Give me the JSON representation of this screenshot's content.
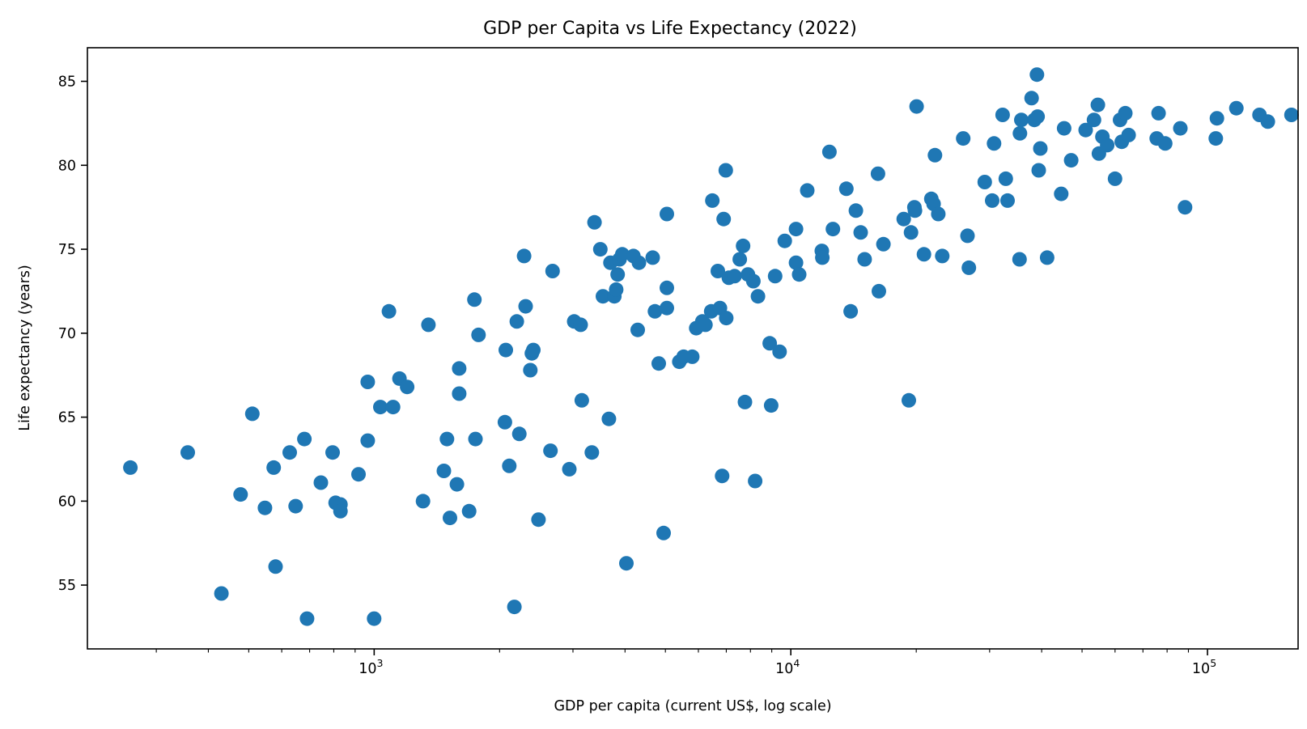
{
  "chart_data": {
    "type": "scatter",
    "title": "GDP per Capita vs Life Expectancy (2022)",
    "xlabel": "GDP per capita (current US$, log scale)",
    "ylabel": "Life expectancy (years)",
    "xscale": "log",
    "xlim": [
      205,
      165000
    ],
    "ylim": [
      51.2,
      87.0
    ],
    "grid": false,
    "legend": "none",
    "marker_color": "#1f77b4",
    "x_ticks": [
      {
        "base": "10",
        "exp": "3",
        "value": 1000
      },
      {
        "base": "10",
        "exp": "4",
        "value": 10000
      },
      {
        "base": "10",
        "exp": "5",
        "value": 100000
      }
    ],
    "y_ticks": [
      55,
      60,
      65,
      70,
      75,
      80,
      85
    ],
    "points": [
      [
        260,
        62.0
      ],
      [
        357,
        62.9
      ],
      [
        430,
        54.5
      ],
      [
        478,
        60.4
      ],
      [
        510,
        65.2
      ],
      [
        547,
        59.6
      ],
      [
        574,
        62.0
      ],
      [
        580,
        56.1
      ],
      [
        627,
        62.9
      ],
      [
        648,
        59.7
      ],
      [
        680,
        63.7
      ],
      [
        690,
        53.0
      ],
      [
        745,
        61.1
      ],
      [
        795,
        62.9
      ],
      [
        808,
        59.9
      ],
      [
        830,
        59.8
      ],
      [
        830,
        59.4
      ],
      [
        917,
        61.6
      ],
      [
        965,
        67.1
      ],
      [
        965,
        63.6
      ],
      [
        1000,
        53.0
      ],
      [
        1035,
        65.6
      ],
      [
        1085,
        71.3
      ],
      [
        1110,
        65.6
      ],
      [
        1150,
        67.3
      ],
      [
        1200,
        66.8
      ],
      [
        1310,
        60.0
      ],
      [
        1350,
        70.5
      ],
      [
        1470,
        61.8
      ],
      [
        1495,
        63.7
      ],
      [
        1520,
        59.0
      ],
      [
        1580,
        61.0
      ],
      [
        1600,
        67.9
      ],
      [
        1600,
        66.4
      ],
      [
        1690,
        59.4
      ],
      [
        1740,
        72.0
      ],
      [
        1750,
        63.7
      ],
      [
        1780,
        69.9
      ],
      [
        2060,
        64.7
      ],
      [
        2070,
        69.0
      ],
      [
        2110,
        62.1
      ],
      [
        2170,
        53.7
      ],
      [
        2200,
        70.7
      ],
      [
        2230,
        64.0
      ],
      [
        2290,
        74.6
      ],
      [
        2310,
        71.6
      ],
      [
        2370,
        67.8
      ],
      [
        2390,
        68.8
      ],
      [
        2410,
        69.0
      ],
      [
        2480,
        58.9
      ],
      [
        2650,
        63.0
      ],
      [
        2680,
        73.7
      ],
      [
        2940,
        61.9
      ],
      [
        3020,
        70.7
      ],
      [
        3130,
        70.5
      ],
      [
        3150,
        66.0
      ],
      [
        3330,
        62.9
      ],
      [
        3380,
        76.6
      ],
      [
        3490,
        75.0
      ],
      [
        3540,
        72.2
      ],
      [
        3660,
        64.9
      ],
      [
        3690,
        74.2
      ],
      [
        3770,
        72.2
      ],
      [
        3810,
        72.6
      ],
      [
        3840,
        73.5
      ],
      [
        3880,
        74.4
      ],
      [
        3940,
        74.7
      ],
      [
        4030,
        56.3
      ],
      [
        4190,
        74.6
      ],
      [
        4290,
        70.2
      ],
      [
        4320,
        74.2
      ],
      [
        4660,
        74.5
      ],
      [
        4720,
        71.3
      ],
      [
        4820,
        68.2
      ],
      [
        4950,
        58.1
      ],
      [
        5040,
        77.1
      ],
      [
        5040,
        72.7
      ],
      [
        5040,
        71.5
      ],
      [
        5400,
        68.3
      ],
      [
        5530,
        68.6
      ],
      [
        5800,
        68.6
      ],
      [
        5930,
        70.3
      ],
      [
        6130,
        70.7
      ],
      [
        6240,
        70.5
      ],
      [
        6440,
        71.3
      ],
      [
        6480,
        77.9
      ],
      [
        6680,
        73.7
      ],
      [
        6760,
        71.5
      ],
      [
        6840,
        61.5
      ],
      [
        6900,
        76.8
      ],
      [
        6980,
        79.7
      ],
      [
        7000,
        70.9
      ],
      [
        7100,
        73.3
      ],
      [
        7330,
        73.4
      ],
      [
        7540,
        74.4
      ],
      [
        7680,
        75.2
      ],
      [
        7760,
        65.9
      ],
      [
        7890,
        73.5
      ],
      [
        8130,
        73.1
      ],
      [
        8210,
        61.2
      ],
      [
        8340,
        72.2
      ],
      [
        8900,
        69.4
      ],
      [
        8970,
        65.7
      ],
      [
        9170,
        73.4
      ],
      [
        9400,
        68.9
      ],
      [
        9670,
        75.5
      ],
      [
        10290,
        76.2
      ],
      [
        10290,
        74.2
      ],
      [
        10470,
        73.5
      ],
      [
        10950,
        78.5
      ],
      [
        11870,
        74.9
      ],
      [
        11900,
        74.5
      ],
      [
        12380,
        80.8
      ],
      [
        12620,
        76.2
      ],
      [
        13590,
        78.6
      ],
      [
        13920,
        71.3
      ],
      [
        14330,
        77.3
      ],
      [
        14710,
        76.0
      ],
      [
        15040,
        74.4
      ],
      [
        16190,
        79.5
      ],
      [
        16270,
        72.5
      ],
      [
        16680,
        75.3
      ],
      [
        18660,
        76.8
      ],
      [
        19200,
        66.0
      ],
      [
        19430,
        76.0
      ],
      [
        19800,
        77.5
      ],
      [
        19860,
        77.3
      ],
      [
        20040,
        83.5
      ],
      [
        20870,
        74.7
      ],
      [
        21740,
        78.0
      ],
      [
        22010,
        77.7
      ],
      [
        22180,
        80.6
      ],
      [
        22590,
        77.1
      ],
      [
        23090,
        74.6
      ],
      [
        25930,
        81.6
      ],
      [
        26550,
        75.8
      ],
      [
        26750,
        73.9
      ],
      [
        29200,
        79.0
      ],
      [
        30430,
        77.9
      ],
      [
        30740,
        81.3
      ],
      [
        32230,
        83.0
      ],
      [
        32810,
        79.2
      ],
      [
        33130,
        77.9
      ],
      [
        35400,
        74.4
      ],
      [
        35480,
        81.9
      ],
      [
        35750,
        82.7
      ],
      [
        37830,
        84.0
      ],
      [
        38420,
        82.7
      ],
      [
        38960,
        85.4
      ],
      [
        39100,
        82.9
      ],
      [
        39350,
        79.7
      ],
      [
        39700,
        81.0
      ],
      [
        41230,
        74.5
      ],
      [
        44560,
        78.3
      ],
      [
        45280,
        82.2
      ],
      [
        47090,
        80.3
      ],
      [
        51010,
        82.1
      ],
      [
        53420,
        82.7
      ],
      [
        54580,
        83.6
      ],
      [
        54880,
        80.7
      ],
      [
        55950,
        81.7
      ],
      [
        57460,
        81.2
      ],
      [
        59990,
        79.2
      ],
      [
        61690,
        82.7
      ],
      [
        62260,
        81.4
      ],
      [
        63500,
        83.1
      ],
      [
        64690,
        81.8
      ],
      [
        75550,
        81.6
      ],
      [
        76310,
        83.1
      ],
      [
        79180,
        81.3
      ],
      [
        86060,
        82.2
      ],
      [
        88350,
        77.5
      ],
      [
        104690,
        81.6
      ],
      [
        105350,
        82.8
      ],
      [
        117300,
        83.4
      ],
      [
        133330,
        83.0
      ],
      [
        139600,
        82.6
      ],
      [
        159030,
        83.0
      ]
    ]
  }
}
